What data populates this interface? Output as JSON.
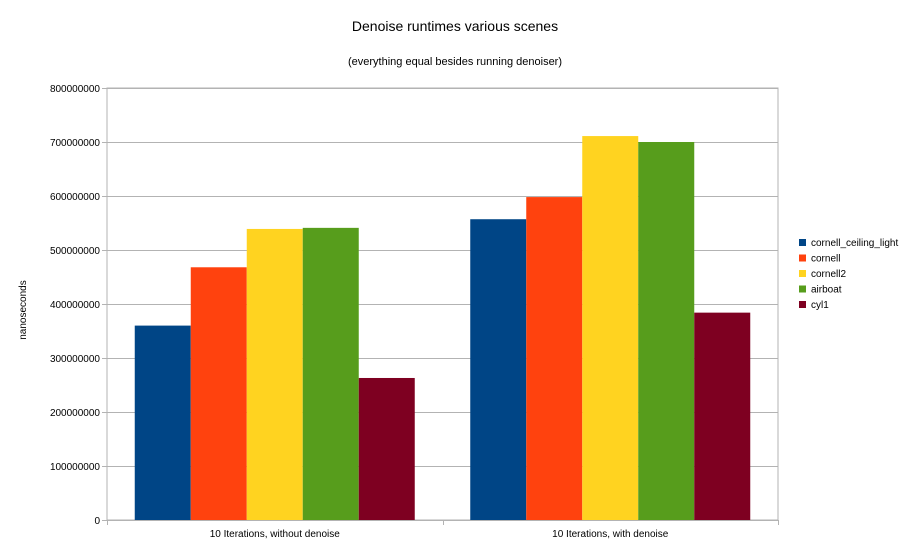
{
  "chart_data": {
    "type": "bar",
    "title": "Denoise runtimes various scenes",
    "subtitle": "(everything equal besides running denoiser)",
    "xlabel": "",
    "ylabel": "nanoseconds",
    "ylim": [
      0,
      800000000
    ],
    "yticks": [
      "0",
      "100000000",
      "200000000",
      "300000000",
      "400000000",
      "500000000",
      "600000000",
      "700000000",
      "800000000"
    ],
    "grid": true,
    "legend_position": "right",
    "categories": [
      "10 Iterations, without denoise",
      "10 Iterations, with denoise"
    ],
    "series": [
      {
        "name": "cornell_ceiling_light",
        "color": "#004586",
        "values": [
          360000000,
          557000000
        ]
      },
      {
        "name": "cornell",
        "color": "#ff420e",
        "values": [
          468000000,
          598000000
        ]
      },
      {
        "name": "cornell2",
        "color": "#ffd320",
        "values": [
          539000000,
          711000000
        ]
      },
      {
        "name": "airboat",
        "color": "#579d1c",
        "values": [
          541000000,
          700000000
        ]
      },
      {
        "name": "cyl1",
        "color": "#7e0021",
        "values": [
          263000000,
          384000000
        ]
      }
    ]
  }
}
